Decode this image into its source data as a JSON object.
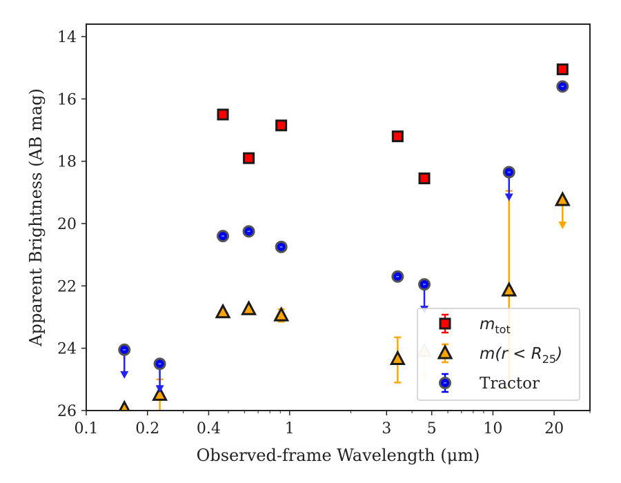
{
  "chart_data": {
    "type": "scatter",
    "xlabel": "Observed-frame Wavelength (μm)",
    "ylabel": "Apparent Brightness (AB mag)",
    "xscale": "log",
    "xlim": [
      0.1,
      30
    ],
    "ylim": [
      26,
      13.6
    ],
    "y_inverted": true,
    "xticks": [
      {
        "value": 0.1,
        "label": "0.1"
      },
      {
        "value": 0.2,
        "label": "0.2"
      },
      {
        "value": 0.4,
        "label": "0.4"
      },
      {
        "value": 1,
        "label": "1"
      },
      {
        "value": 3,
        "label": "3"
      },
      {
        "value": 5,
        "label": "5"
      },
      {
        "value": 10,
        "label": "10"
      },
      {
        "value": 20,
        "label": "20"
      }
    ],
    "yticks": [
      14,
      16,
      18,
      20,
      22,
      24,
      26
    ],
    "grid": false,
    "legend_position": "lower-right",
    "series": [
      {
        "name": "m_tot",
        "legend_label": "m",
        "legend_sub": "tot",
        "marker": "square",
        "color": "#ff0000",
        "edge": "#1a1a1a",
        "points": [
          {
            "x": 0.47,
            "y": 16.5
          },
          {
            "x": 0.63,
            "y": 17.9
          },
          {
            "x": 0.91,
            "y": 16.85
          },
          {
            "x": 3.4,
            "y": 17.2
          },
          {
            "x": 4.6,
            "y": 18.55
          },
          {
            "x": 22.0,
            "y": 15.05
          }
        ]
      },
      {
        "name": "m(r < R25)",
        "legend_label": "m(r < R",
        "legend_sub": "25",
        "legend_tail": ")",
        "marker": "triangle",
        "color": "#ffa500",
        "edge": "#1a1a1a",
        "points": [
          {
            "x": 0.154,
            "y": 25.95
          },
          {
            "x": 0.23,
            "y": 25.5,
            "err": [
              25.0,
              26.6
            ],
            "upper_limit": false
          },
          {
            "x": 0.47,
            "y": 22.85
          },
          {
            "x": 0.63,
            "y": 22.75
          },
          {
            "x": 0.91,
            "y": 22.95,
            "err": [
              22.75,
              23.15
            ]
          },
          {
            "x": 3.4,
            "y": 24.35,
            "err": [
              23.65,
              25.1
            ]
          },
          {
            "x": 4.6,
            "y": 24.1,
            "upper_limit": true,
            "faded": true
          },
          {
            "x": 12.0,
            "y": 22.15,
            "err": [
              18.95,
              25.25
            ]
          },
          {
            "x": 22.0,
            "y": 19.25,
            "upper_limit": true
          }
        ]
      },
      {
        "name": "Tractor",
        "legend_label": "Tractor",
        "marker": "circle",
        "color": "#0000ee",
        "edge": "#555555",
        "points": [
          {
            "x": 0.154,
            "y": 24.05,
            "upper_limit": true
          },
          {
            "x": 0.23,
            "y": 24.5,
            "upper_limit": true
          },
          {
            "x": 0.47,
            "y": 20.4
          },
          {
            "x": 0.63,
            "y": 20.25
          },
          {
            "x": 0.91,
            "y": 20.75
          },
          {
            "x": 3.4,
            "y": 21.7
          },
          {
            "x": 4.6,
            "y": 21.95,
            "upper_limit": true
          },
          {
            "x": 12.0,
            "y": 18.35,
            "upper_limit": true
          },
          {
            "x": 22.0,
            "y": 15.6
          }
        ]
      }
    ]
  }
}
